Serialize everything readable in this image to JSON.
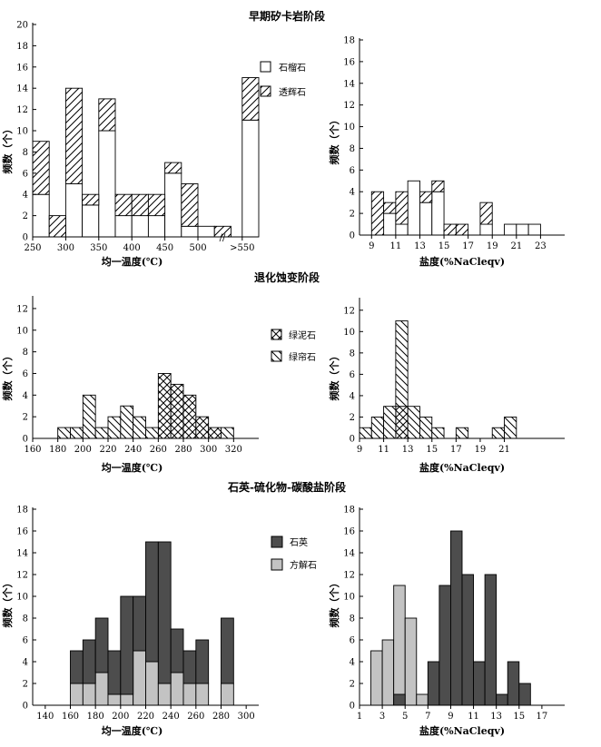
{
  "figure_title": "",
  "colors": {
    "quartz": "#4d4d4d",
    "calcite": "#c3c3c3",
    "outline": "#000000"
  },
  "chart_data": [
    {
      "id": "early-temp",
      "type": "bar",
      "stacked": true,
      "title": "早期矽卡岩阶段",
      "xlabel": "均一温度(℃)",
      "ylabel": "频数（个）",
      "ylim": [
        0,
        20
      ],
      "yticks": [
        0,
        2,
        4,
        6,
        8,
        10,
        12,
        14,
        16,
        18,
        20
      ],
      "xlim": [
        250,
        592
      ],
      "xticks": [
        250,
        300,
        350,
        400,
        450,
        500,
        550
      ],
      "xtick_labels": [
        "250",
        "300",
        "350",
        "400",
        "450",
        "500",
        ">550"
      ],
      "bin_width": 25,
      "series": [
        {
          "name": "石榴石",
          "fill": "white",
          "bars": [
            [
              250,
              4
            ],
            [
              275,
              0
            ],
            [
              300,
              5
            ],
            [
              325,
              3
            ],
            [
              350,
              10
            ],
            [
              375,
              2
            ],
            [
              400,
              2
            ],
            [
              425,
              2
            ],
            [
              450,
              6
            ],
            [
              475,
              1
            ],
            [
              500,
              1
            ],
            [
              525,
              0
            ],
            [
              567,
              11
            ]
          ]
        },
        {
          "name": "透辉石",
          "fill": "hatch-diag",
          "bars": [
            [
              250,
              5
            ],
            [
              275,
              2
            ],
            [
              300,
              9
            ],
            [
              325,
              1
            ],
            [
              350,
              3
            ],
            [
              375,
              2
            ],
            [
              400,
              2
            ],
            [
              425,
              2
            ],
            [
              450,
              1
            ],
            [
              475,
              4
            ],
            [
              500,
              0
            ],
            [
              525,
              1
            ],
            [
              567,
              4
            ]
          ]
        }
      ],
      "break_label": "//",
      "legend": [
        "石榴石",
        "透辉石"
      ]
    },
    {
      "id": "early-salinity",
      "type": "bar",
      "stacked": true,
      "title": "",
      "xlabel": "盐度(%NaCleqv)",
      "ylabel": "频数（个）",
      "ylim": [
        0,
        18
      ],
      "yticks": [
        0,
        2,
        4,
        6,
        8,
        10,
        12,
        14,
        16,
        18
      ],
      "xlim": [
        8,
        25
      ],
      "xticks": [
        9,
        11,
        13,
        15,
        17,
        19,
        21,
        23
      ],
      "xtick_labels": [
        "9",
        "11",
        "13",
        "15",
        "17",
        "19",
        "21",
        "23"
      ],
      "bin_width": 1,
      "series": [
        {
          "name": "石榴石",
          "fill": "white",
          "bars": [
            [
              9,
              0
            ],
            [
              10,
              2
            ],
            [
              11,
              1
            ],
            [
              12,
              5
            ],
            [
              13,
              3
            ],
            [
              14,
              4
            ],
            [
              15,
              0
            ],
            [
              16,
              0
            ],
            [
              18,
              1
            ],
            [
              20,
              1
            ],
            [
              21,
              1
            ],
            [
              22,
              1
            ]
          ]
        },
        {
          "name": "透辉石",
          "fill": "hatch-diag",
          "bars": [
            [
              9,
              4
            ],
            [
              10,
              1
            ],
            [
              11,
              3
            ],
            [
              12,
              0
            ],
            [
              13,
              1
            ],
            [
              14,
              1
            ],
            [
              15,
              1
            ],
            [
              16,
              1
            ],
            [
              18,
              2
            ],
            [
              20,
              0
            ],
            [
              21,
              0
            ],
            [
              22,
              0
            ]
          ]
        }
      ]
    },
    {
      "id": "retro-temp",
      "type": "bar",
      "stacked": true,
      "title": "退化蚀变阶段",
      "xlabel": "均一温度(℃)",
      "ylabel": "频数（个）",
      "ylim": [
        0,
        13
      ],
      "yticks": [
        0,
        2,
        4,
        6,
        8,
        10,
        12
      ],
      "xlim": [
        160,
        340
      ],
      "xticks": [
        160,
        180,
        200,
        220,
        240,
        260,
        280,
        300,
        320
      ],
      "xtick_labels": [
        "160",
        "180",
        "200",
        "220",
        "240",
        "260",
        "280",
        "300",
        "320"
      ],
      "bin_width": 10,
      "series": [
        {
          "name": "绿泥石",
          "fill": "hatch-cross",
          "bars": [
            [
              260,
              6
            ],
            [
              270,
              5
            ],
            [
              280,
              4
            ],
            [
              290,
              2
            ],
            [
              300,
              1
            ]
          ]
        },
        {
          "name": "绿帘石",
          "fill": "hatch-diag-back",
          "bars": [
            [
              180,
              1
            ],
            [
              190,
              1
            ],
            [
              200,
              4
            ],
            [
              210,
              1
            ],
            [
              220,
              2
            ],
            [
              230,
              3
            ],
            [
              240,
              2
            ],
            [
              250,
              1
            ],
            [
              270,
              0
            ],
            [
              280,
              0
            ],
            [
              290,
              0
            ],
            [
              300,
              0
            ],
            [
              310,
              1
            ]
          ]
        }
      ],
      "legend": [
        "绿泥石",
        "绿帘石"
      ]
    },
    {
      "id": "retro-salinity",
      "type": "bar",
      "stacked": true,
      "title": "",
      "xlabel": "盐度(%NaCleqv)",
      "ylabel": "频数（个）",
      "ylim": [
        0,
        13
      ],
      "yticks": [
        0,
        2,
        4,
        6,
        8,
        10,
        12
      ],
      "xlim": [
        9,
        26
      ],
      "xticks": [
        9,
        11,
        13,
        15,
        17,
        19,
        21
      ],
      "xtick_labels": [
        "9",
        "11",
        "13",
        "15",
        "17",
        "19",
        "21"
      ],
      "bin_width": 1,
      "series": [
        {
          "name": "绿泥石",
          "fill": "hatch-cross",
          "bars": [
            [
              12,
              3
            ],
            [
              13,
              0
            ]
          ]
        },
        {
          "name": "绿帘石",
          "fill": "hatch-diag-back",
          "bars": [
            [
              9,
              1
            ],
            [
              10,
              2
            ],
            [
              11,
              3
            ],
            [
              12,
              8
            ],
            [
              13,
              3
            ],
            [
              14,
              2
            ],
            [
              15,
              1
            ],
            [
              17,
              1
            ],
            [
              20,
              1
            ],
            [
              21,
              2
            ]
          ]
        }
      ]
    },
    {
      "id": "quartz-temp",
      "type": "bar",
      "stacked": true,
      "title": "石英-硫化物-碳酸盐阶段",
      "xlabel": "均一温度(℃)",
      "ylabel": "频数（个）",
      "ylim": [
        0,
        18
      ],
      "yticks": [
        0,
        2,
        4,
        6,
        8,
        10,
        12,
        14,
        16,
        18
      ],
      "xlim": [
        130,
        310
      ],
      "xticks": [
        140,
        160,
        180,
        200,
        220,
        240,
        260,
        280,
        300
      ],
      "xtick_labels": [
        "140",
        "160",
        "180",
        "200",
        "220",
        "240",
        "260",
        "280",
        "300"
      ],
      "bin_width": 10,
      "series": [
        {
          "name": "方解石",
          "fill": "calcite",
          "bars": [
            [
              160,
              2
            ],
            [
              170,
              2
            ],
            [
              180,
              3
            ],
            [
              190,
              1
            ],
            [
              200,
              1
            ],
            [
              210,
              5
            ],
            [
              220,
              4
            ],
            [
              230,
              2
            ],
            [
              240,
              3
            ],
            [
              250,
              2
            ],
            [
              260,
              2
            ],
            [
              280,
              2
            ]
          ]
        },
        {
          "name": "石英",
          "fill": "quartz",
          "bars": [
            [
              160,
              3
            ],
            [
              170,
              4
            ],
            [
              180,
              5
            ],
            [
              190,
              4
            ],
            [
              200,
              9
            ],
            [
              210,
              5
            ],
            [
              220,
              11
            ],
            [
              230,
              13
            ],
            [
              240,
              4
            ],
            [
              250,
              3
            ],
            [
              260,
              4
            ],
            [
              280,
              6
            ]
          ]
        }
      ],
      "legend": [
        "石英",
        "方解石"
      ]
    },
    {
      "id": "quartz-salinity",
      "type": "bar",
      "stacked": false,
      "title": "",
      "xlabel": "盐度(%NaCleqv)",
      "ylabel": "频数（个）",
      "ylim": [
        0,
        18
      ],
      "yticks": [
        0,
        2,
        4,
        6,
        8,
        10,
        12,
        14,
        16,
        18
      ],
      "xlim": [
        1,
        19
      ],
      "xticks": [
        1,
        3,
        5,
        7,
        9,
        11,
        13,
        15,
        17
      ],
      "xtick_labels": [
        "1",
        "3",
        "5",
        "7",
        "9",
        "11",
        "13",
        "15",
        "17"
      ],
      "bin_width": 1,
      "series": [
        {
          "name": "方解石",
          "fill": "calcite",
          "bars": [
            [
              2,
              5
            ],
            [
              3,
              6
            ],
            [
              4,
              11
            ],
            [
              5,
              8
            ],
            [
              6,
              1
            ]
          ]
        },
        {
          "name": "石英",
          "fill": "quartz",
          "bars": [
            [
              4,
              1
            ],
            [
              7,
              4
            ],
            [
              8,
              11
            ],
            [
              9,
              16
            ],
            [
              10,
              12
            ],
            [
              11,
              4
            ],
            [
              12,
              12
            ],
            [
              13,
              1
            ],
            [
              14,
              4
            ],
            [
              15,
              2
            ]
          ]
        }
      ]
    }
  ]
}
